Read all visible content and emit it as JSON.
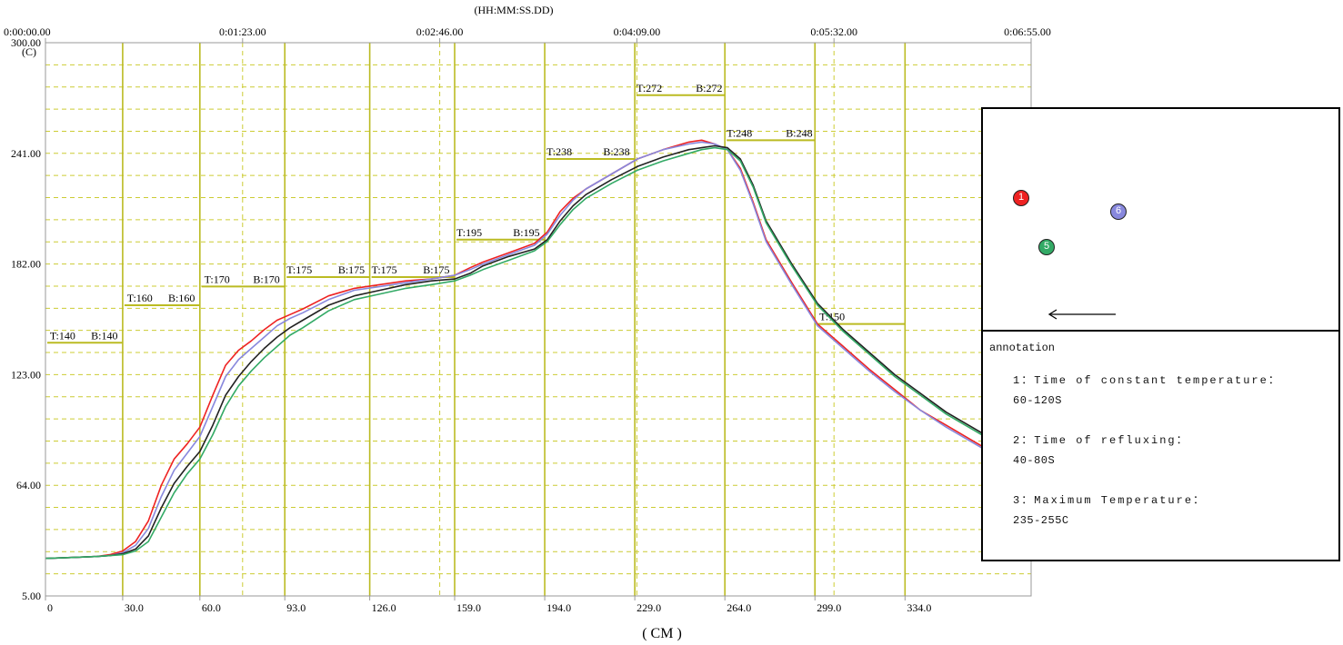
{
  "chart_data": {
    "type": "line",
    "time_axis_label": "(HH:MM:SS.DD)",
    "time_ticks": [
      "0:00:00.00",
      "0:01:23.00",
      "0:02:46.00",
      "0:04:09.00",
      "0:05:32.00",
      "0:06:55.00"
    ],
    "y_unit": "(C)",
    "y_ticks": [
      "300.00",
      "241.00",
      "182.00",
      "123.00",
      "64.00",
      "5.00"
    ],
    "ylim": [
      5,
      300
    ],
    "xlabel": "( CM )",
    "x_ticks": [
      "0",
      "30.0",
      "60.0",
      "93.0",
      "126.0",
      "159.0",
      "194.0",
      "229.0",
      "264.0",
      "299.0",
      "334.0"
    ],
    "x_tick_values": [
      0,
      30,
      60,
      93,
      126,
      159,
      194,
      229,
      264,
      299,
      334
    ],
    "xlim": [
      0,
      383
    ],
    "zone_boundaries": [
      0,
      30,
      60,
      93,
      126,
      159,
      194,
      229,
      264,
      299,
      334
    ],
    "zones": [
      {
        "x0": 0,
        "x1": 30,
        "setpoint": 140,
        "labels": [
          {
            "text": "T:140",
            "x": 1
          },
          {
            "text": "B:140",
            "x": 17
          }
        ]
      },
      {
        "x0": 30,
        "x1": 60,
        "setpoint": 160,
        "labels": [
          {
            "text": "T:160",
            "x": 31
          },
          {
            "text": "B:160",
            "x": 47
          }
        ]
      },
      {
        "x0": 60,
        "x1": 93,
        "setpoint": 170,
        "labels": [
          {
            "text": "T:170",
            "x": 61
          },
          {
            "text": "B:170",
            "x": 80
          }
        ]
      },
      {
        "x0": 93,
        "x1": 126,
        "setpoint": 175,
        "labels": [
          {
            "text": "T:175",
            "x": 93
          },
          {
            "text": "B:175",
            "x": 113
          }
        ]
      },
      {
        "x0": 126,
        "x1": 159,
        "setpoint": 175,
        "labels": [
          {
            "text": "T:175",
            "x": 126
          },
          {
            "text": "B:175",
            "x": 146
          }
        ]
      },
      {
        "x0": 159,
        "x1": 194,
        "setpoint": 195,
        "labels": [
          {
            "text": "T:195",
            "x": 159
          },
          {
            "text": "B:195",
            "x": 181
          }
        ]
      },
      {
        "x0": 194,
        "x1": 229,
        "setpoint": 238,
        "labels": [
          {
            "text": "T:238",
            "x": 194
          },
          {
            "text": "B:238",
            "x": 216
          }
        ]
      },
      {
        "x0": 229,
        "x1": 264,
        "setpoint": 272,
        "labels": [
          {
            "text": "T:272",
            "x": 229
          },
          {
            "text": "B:272",
            "x": 252
          }
        ]
      },
      {
        "x0": 264,
        "x1": 299,
        "setpoint": 248,
        "labels": [
          {
            "text": "T:248",
            "x": 264
          },
          {
            "text": "B:248",
            "x": 287
          }
        ]
      },
      {
        "x0": 299,
        "x1": 334,
        "setpoint": 150,
        "labels": [
          {
            "text": "T:150",
            "x": 300
          }
        ]
      }
    ],
    "series": [
      {
        "color": "#ee2222",
        "x": [
          0,
          10,
          20,
          25,
          30,
          35,
          40,
          45,
          50,
          55,
          60,
          65,
          70,
          75,
          80,
          85,
          90,
          95,
          100,
          110,
          120,
          130,
          140,
          150,
          159,
          165,
          170,
          180,
          190,
          195,
          200,
          205,
          210,
          220,
          230,
          240,
          250,
          255,
          260,
          265,
          270,
          275,
          280,
          290,
          300,
          310,
          320,
          330,
          340,
          350,
          360,
          370,
          380
        ],
        "values": [
          25,
          25.5,
          26,
          27,
          29,
          34,
          45,
          64,
          78,
          86,
          95,
          112,
          128,
          136,
          141,
          147,
          152,
          155,
          158,
          165,
          169,
          171,
          173,
          174,
          176,
          180,
          183,
          188,
          193,
          199,
          210,
          217,
          222,
          230,
          238,
          243,
          247,
          248,
          246,
          243,
          233,
          215,
          195,
          172,
          150,
          138,
          126,
          115,
          104,
          96,
          88,
          80,
          72
        ]
      },
      {
        "color": "#8888dd",
        "x": [
          0,
          10,
          20,
          25,
          30,
          35,
          40,
          45,
          50,
          55,
          60,
          65,
          70,
          75,
          80,
          85,
          90,
          95,
          100,
          110,
          120,
          130,
          140,
          150,
          159,
          165,
          170,
          180,
          190,
          195,
          200,
          205,
          210,
          220,
          230,
          240,
          250,
          255,
          260,
          265,
          270,
          275,
          280,
          290,
          300,
          310,
          320,
          330,
          340,
          350,
          360,
          370,
          380
        ],
        "values": [
          25,
          25.5,
          26,
          26.5,
          28,
          32,
          41,
          58,
          72,
          81,
          90,
          106,
          122,
          131,
          137,
          143,
          149,
          153,
          156,
          163,
          168,
          170,
          172,
          174,
          176,
          179,
          182,
          187,
          192,
          198,
          208,
          216,
          222,
          230,
          238,
          243,
          246,
          247,
          246,
          243,
          232,
          214,
          194,
          171,
          149,
          137,
          125,
          114,
          104,
          95,
          87,
          79,
          71
        ]
      },
      {
        "color": "#222222",
        "x": [
          0,
          10,
          20,
          25,
          30,
          35,
          40,
          45,
          50,
          55,
          60,
          65,
          70,
          75,
          80,
          85,
          90,
          95,
          100,
          110,
          120,
          130,
          140,
          150,
          159,
          165,
          170,
          180,
          190,
          195,
          200,
          205,
          210,
          220,
          230,
          240,
          250,
          255,
          260,
          265,
          270,
          275,
          280,
          290,
          300,
          310,
          320,
          330,
          340,
          350,
          360,
          370,
          380
        ],
        "values": [
          25,
          25.5,
          26,
          26.5,
          27.5,
          30,
          37,
          52,
          65,
          74,
          82,
          96,
          112,
          122,
          130,
          137,
          143,
          148,
          152,
          160,
          165,
          168,
          171,
          173,
          174,
          177,
          181,
          186,
          190,
          195,
          205,
          213,
          219,
          227,
          234,
          239,
          243,
          244,
          245,
          244,
          238,
          224,
          205,
          182,
          161,
          147,
          135,
          123,
          113,
          103,
          95,
          87,
          80
        ]
      },
      {
        "color": "#33aa66",
        "x": [
          0,
          10,
          20,
          25,
          30,
          35,
          40,
          45,
          50,
          55,
          60,
          65,
          70,
          75,
          80,
          85,
          90,
          95,
          100,
          110,
          120,
          130,
          140,
          150,
          159,
          165,
          170,
          180,
          190,
          195,
          200,
          205,
          210,
          220,
          230,
          240,
          250,
          255,
          260,
          265,
          270,
          275,
          280,
          290,
          300,
          310,
          320,
          330,
          340,
          350,
          360,
          370,
          380
        ],
        "values": [
          25,
          25.5,
          26,
          26.5,
          27,
          29,
          34,
          47,
          60,
          70,
          78,
          91,
          106,
          117,
          125,
          132,
          138,
          144,
          148,
          157,
          163,
          166,
          169,
          171,
          173,
          176,
          179,
          184,
          189,
          194,
          203,
          211,
          217,
          225,
          232,
          237,
          241,
          243,
          244,
          243,
          237,
          223,
          204,
          181,
          160,
          146,
          134,
          122,
          112,
          102,
          94,
          86,
          79
        ]
      }
    ]
  },
  "legend": {
    "probes": [
      {
        "number": "1",
        "color": "#ee2222"
      },
      {
        "number": "6",
        "color": "#8888dd"
      },
      {
        "number": "5",
        "color": "#33aa66"
      }
    ],
    "arrow_icon": "left-arrow"
  },
  "annotation": {
    "title": "annotation",
    "items": [
      {
        "label": "1：Time of constant temperature：",
        "value": "60-120S"
      },
      {
        "label": "2：Time of refluxing：",
        "value": "40-80S"
      },
      {
        "label": "3：Maximum Temperature：",
        "value": "235-255C"
      }
    ]
  }
}
